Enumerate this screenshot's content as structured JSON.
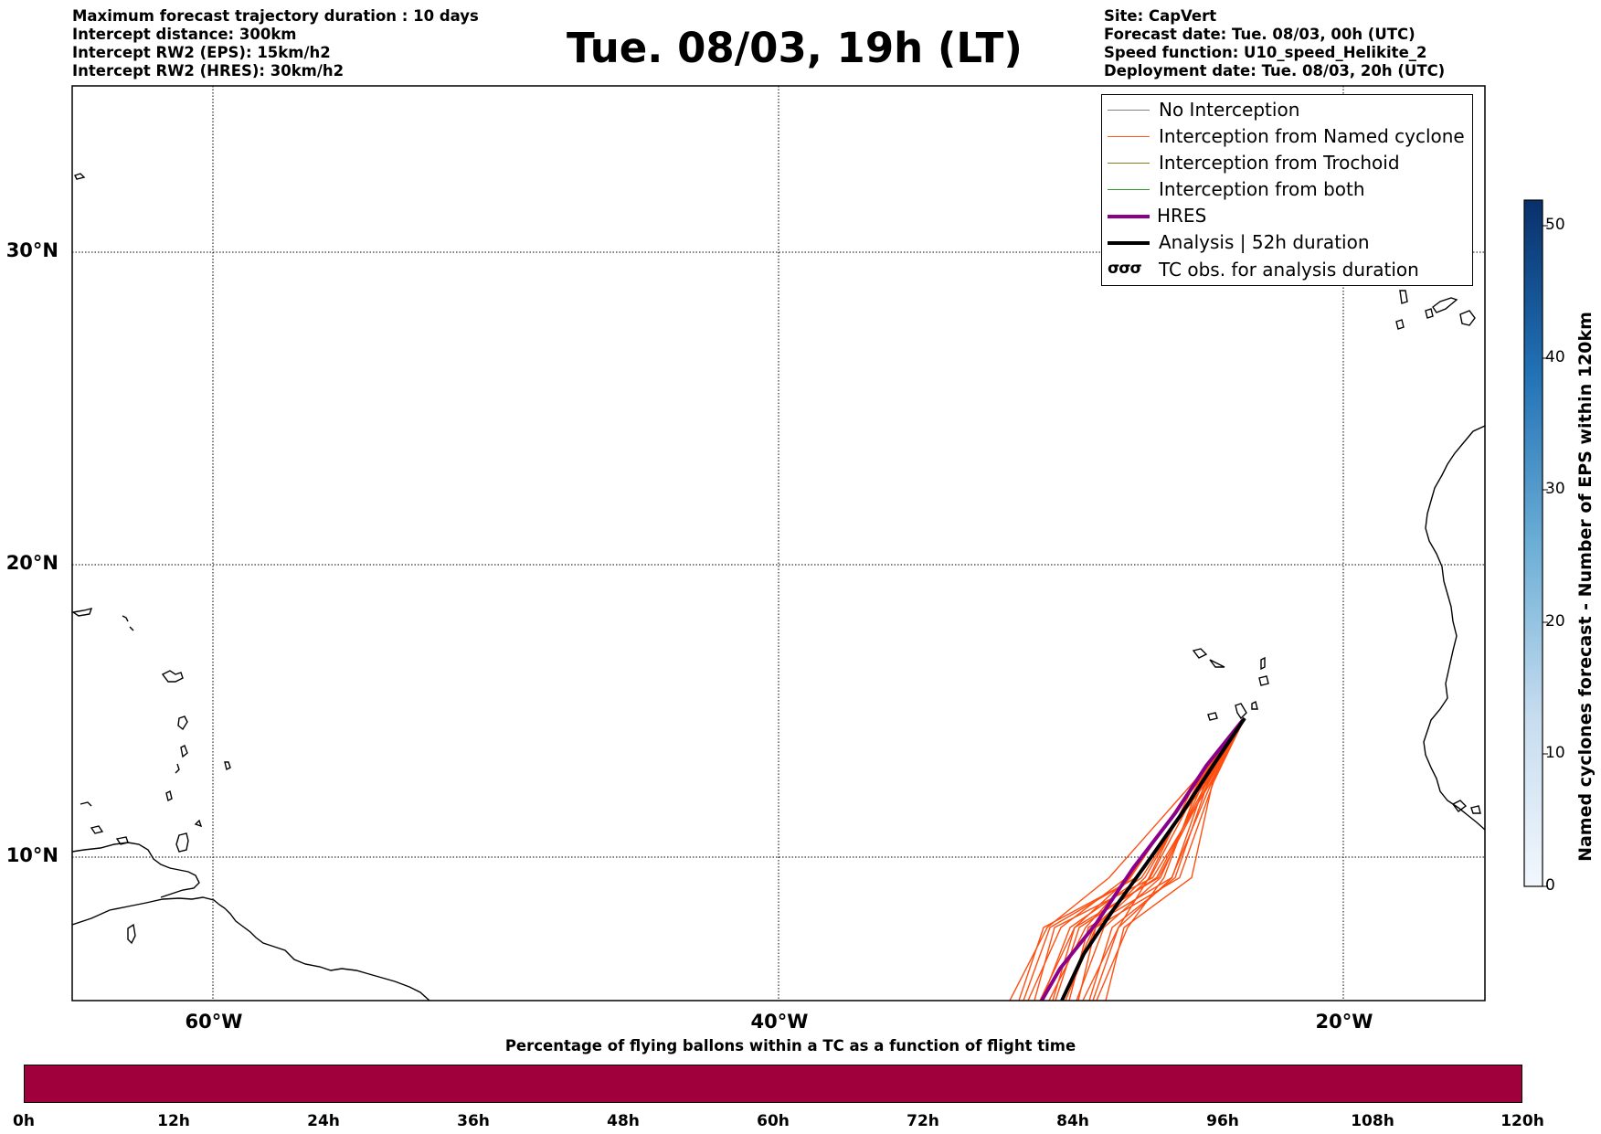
{
  "info_left": [
    "Maximum forecast trajectory duration : 10 days",
    "Intercept distance: 300km",
    "Intercept RW2 (EPS):  15km/h2",
    "Intercept RW2 (HRES): 30km/h2"
  ],
  "info_right": [
    "Site: CapVert",
    "Forecast date: Tue. 08/03, 00h (UTC)",
    "Speed function: U10_speed_Helikite_2",
    "Deployment date: Tue. 08/03, 20h (UTC)"
  ],
  "title": "Tue. 08/03, 19h (LT)",
  "legend": [
    {
      "label": "No Interception",
      "color": "#7f7f7f",
      "style": "thin"
    },
    {
      "label": "Interception from Named cyclone",
      "color": "#ff5a1e",
      "style": "thin"
    },
    {
      "label": "Interception from Trochoid",
      "color": "#8a7a1e",
      "style": "thin"
    },
    {
      "label": "Interception from both",
      "color": "#2e9a2e",
      "style": "thin"
    },
    {
      "label": "HRES",
      "color": "#8b008b",
      "style": "thick"
    },
    {
      "label": "Analysis | 52h duration",
      "color": "#000000",
      "style": "thick"
    },
    {
      "label": "TC obs. for analysis duration",
      "symbol": "σσσ",
      "style": "symbol"
    }
  ],
  "lat_labels": [
    {
      "label": "30°N",
      "lat": 30
    },
    {
      "label": "20°N",
      "lat": 20
    },
    {
      "label": "10°N",
      "lat": 10
    }
  ],
  "lon_labels": [
    {
      "label": "60°W",
      "lon": -60
    },
    {
      "label": "40°W",
      "lon": -40
    },
    {
      "label": "20°W",
      "lon": -20
    }
  ],
  "colorbar_right": {
    "label": "Named cyclones forecast - Number of EPS within 120km",
    "ticks": [
      "0",
      "10",
      "20",
      "30",
      "40",
      "50"
    ],
    "range": [
      0,
      52
    ]
  },
  "colorbar_bottom": {
    "title": "Percentage of flying ballons within a TC as a function of flight time",
    "ticks": [
      "0h",
      "12h",
      "24h",
      "36h",
      "48h",
      "60h",
      "72h",
      "84h",
      "96h",
      "108h",
      "120h"
    ],
    "color": "#a0003c"
  }
}
